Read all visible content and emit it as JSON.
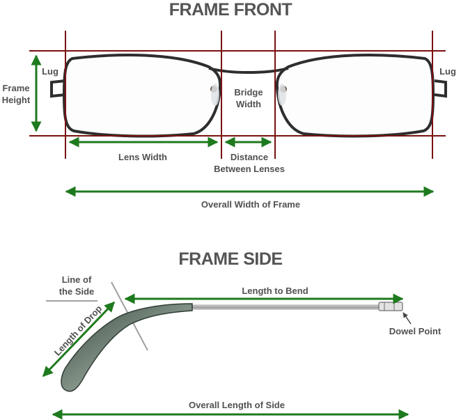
{
  "front": {
    "title": "FRAME FRONT",
    "labels": {
      "lug_left": "Lug",
      "lug_right": "Lug",
      "frame_height": [
        "Frame",
        "Height"
      ],
      "bridge_width": [
        "Bridge",
        "Width"
      ],
      "lens_width": "Lens Width",
      "distance_between_lenses": [
        "Distance",
        "Between Lenses"
      ],
      "overall_width": "Overall Width of Frame"
    }
  },
  "side": {
    "title": "FRAME SIDE",
    "labels": {
      "line_of_side": [
        "Line of",
        "the Side"
      ],
      "length_to_bend": "Length to Bend",
      "dowel_point": "Dowel Point",
      "length_of_drop": "Length of Drop",
      "overall_length": "Overall Length of Side"
    }
  },
  "colors": {
    "guide_line": "#7a1010",
    "dimension_arrow": "#1e7a1e",
    "label_text": "#505050",
    "frame_metal": "#2e2e2e"
  }
}
